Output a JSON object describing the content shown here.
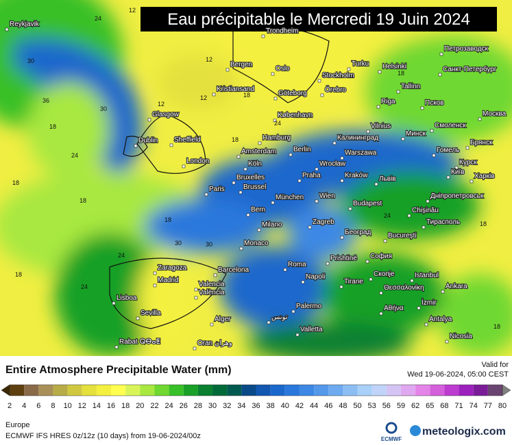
{
  "header": {
    "title": "Eau précipitable le Mercredi 19 Juin 2024"
  },
  "cities": [
    "Reykjavik",
    "Trondheim",
    "Bergen",
    "Oslo",
    "Stockholm",
    "Turku",
    "Helsinki",
    "Петрозаводск",
    "Санкт-Петербург",
    "Kristiansand",
    "Göteborg",
    "Örebro",
    "Tallinn",
    "Glasgow",
    "København",
    "Riga",
    "Псков",
    "Москва",
    "Смоленск",
    "Vilnius",
    "Минск",
    "Dublin",
    "Sheffield",
    "Hamburg",
    "Калининград",
    "Berlin",
    "Гомель",
    "Брянск",
    "Amsterdam",
    "Warszawa",
    "London",
    "Köln",
    "Wrocław",
    "Курск",
    "Київ",
    "Харків",
    "Bruxelles",
    "Brussel",
    "Praha",
    "Kraków",
    "Львів",
    "Paris",
    "München",
    "Wien",
    "Дніпропетровськ",
    "Budapest",
    "Chişinău",
    "Bern",
    "Тирасполь",
    "Zagreb",
    "Milano",
    "Београд",
    "Bucureşti",
    "Monaco",
    "Prishtinë",
    "София",
    "Zaragoza",
    "Barcelona",
    "Roma",
    "Madrid",
    "Valencia",
    "València",
    "Napoli",
    "Скопје",
    "Istanbul",
    "Tirane",
    "Ankara",
    "Θεσσαλονίκη",
    "Lisboa",
    "İzmir",
    "Palermo",
    "Sevilla",
    "Alger",
    "تونس",
    "Αθήνα",
    "Antalya",
    "Valletta",
    "Rabat ⵕⴱⴰⵟ",
    "Oran وهران",
    "Nicosia"
  ],
  "contour_labels": [
    12,
    24,
    30,
    30,
    36,
    18,
    18,
    24,
    18,
    12,
    12,
    18,
    18,
    24,
    30,
    24,
    18,
    18,
    24,
    18,
    18,
    24,
    30,
    18,
    12
  ],
  "legend": {
    "title": "Entire Atmosphere Precipitable Water (mm)",
    "valid_label": "Valid for",
    "valid_time": "Wed 19-06-2024, 05:00 CEST",
    "labels": [
      2,
      4,
      6,
      8,
      10,
      12,
      14,
      16,
      18,
      20,
      22,
      24,
      26,
      28,
      30,
      32,
      34,
      36,
      38,
      40,
      42,
      44,
      46,
      48,
      50,
      53,
      56,
      59,
      62,
      65,
      68,
      71,
      74,
      77,
      80
    ],
    "colors": [
      "#3a2800",
      "#5e4010",
      "#8a6a48",
      "#a89058",
      "#b8ac48",
      "#d0c840",
      "#e4e03c",
      "#f4f040",
      "#ffff50",
      "#d8f458",
      "#a8e840",
      "#70d830",
      "#38c028",
      "#18a028",
      "#0a8030",
      "#006a38",
      "#005a50",
      "#0a4a88",
      "#1258b0",
      "#1a68cc",
      "#2a78dc",
      "#3c88e4",
      "#5498ea",
      "#6eaaf0",
      "#8cbef4",
      "#a8d0f8",
      "#c0d4fa",
      "#d4c4f4",
      "#e0a8f0",
      "#e484e8",
      "#d460dc",
      "#bc3cd0",
      "#9c20bc",
      "#7a1c98",
      "#6a4470",
      "#808080"
    ]
  },
  "footer": {
    "region": "Europe",
    "model": "ECMWF IFS HRES 0z/12z (10 days) from  19-06-2024/00z",
    "ecmwf": "ECMWF",
    "brand": "meteologix.com"
  }
}
